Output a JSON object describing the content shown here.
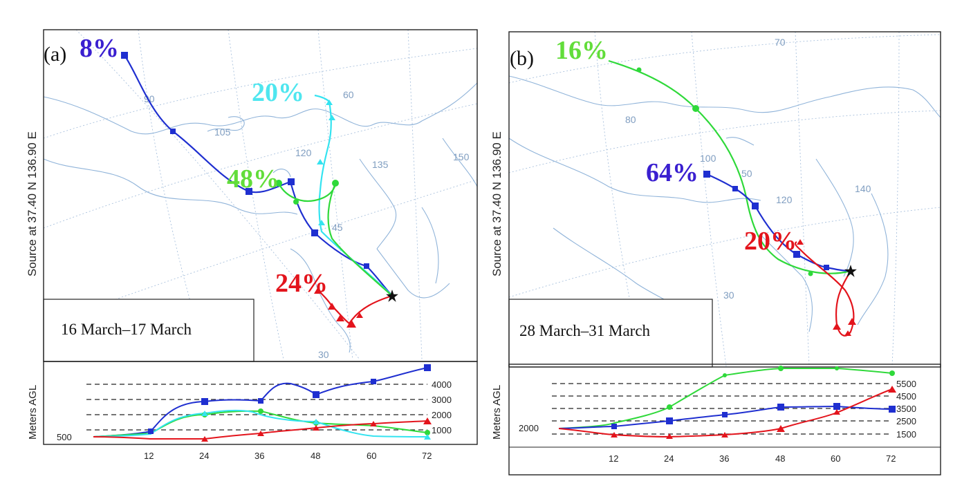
{
  "panels": [
    {
      "id": "a",
      "label": "(a)",
      "side_label": "Source   at   37.40 N   136.90 E",
      "date_range": "16 March–17 March",
      "percent_labels": [
        {
          "text": "8%",
          "color": "#3a1fd0"
        },
        {
          "text": "20%",
          "color": "#4fe6ef"
        },
        {
          "text": "48%",
          "color": "#62dd3a"
        },
        {
          "text": "24%",
          "color": "#e3141c"
        }
      ],
      "grid_labels": [
        "90",
        "105",
        "120",
        "135",
        "150",
        "60",
        "45",
        "30"
      ],
      "height_axis_label": "Meters AGL",
      "height_ticks": [
        "4000",
        "3000",
        "2000",
        "1000"
      ],
      "height_base_label": "500",
      "time_ticks": [
        "12",
        "24",
        "36",
        "48",
        "60",
        "72"
      ]
    },
    {
      "id": "b",
      "label": "(b)",
      "side_label": "Source   at   37.40 N   136.90 E",
      "date_range": "28 March–31 March",
      "percent_labels": [
        {
          "text": "16%",
          "color": "#62dd3a"
        },
        {
          "text": "64%",
          "color": "#3a1fd0"
        },
        {
          "text": "20%",
          "color": "#e3141c"
        }
      ],
      "grid_labels": [
        "70",
        "80",
        "100",
        "50",
        "120",
        "140",
        "30"
      ],
      "height_axis_label": "Meters AGL",
      "height_ticks": [
        "5500",
        "4500",
        "3500",
        "2500",
        "1500"
      ],
      "height_base_label": "2000",
      "time_ticks": [
        "12",
        "24",
        "36",
        "48",
        "60",
        "72"
      ]
    }
  ],
  "colors": {
    "blue": "#1f2fd0",
    "cyan": "#34e3f0",
    "green": "#2fd93a",
    "red": "#e3141c"
  }
}
